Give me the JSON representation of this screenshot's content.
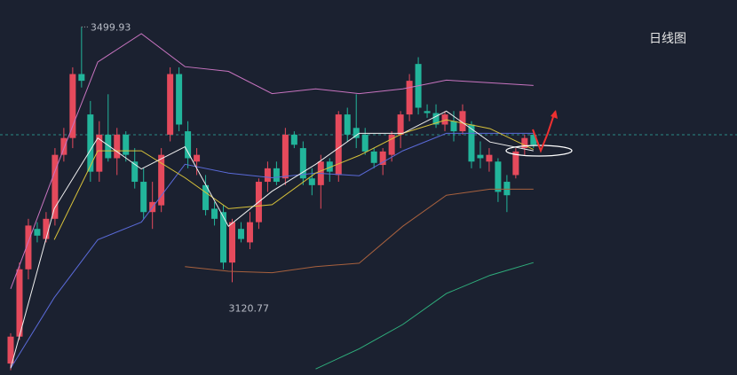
{
  "chart_data": {
    "type": "candlestick",
    "title": "日线图",
    "ylim": [
      2983,
      3540
    ],
    "up_color": "#e54a5c",
    "down_color": "#22b59b",
    "ohlc": [
      [
        3000,
        3045,
        2990,
        3040
      ],
      [
        3040,
        3150,
        3035,
        3140
      ],
      [
        3140,
        3215,
        3125,
        3205
      ],
      [
        3200,
        3210,
        3180,
        3190
      ],
      [
        3185,
        3225,
        3180,
        3215
      ],
      [
        3215,
        3320,
        3205,
        3310
      ],
      [
        3310,
        3350,
        3300,
        3335
      ],
      [
        3335,
        3440,
        3320,
        3430
      ],
      [
        3430,
        3499.93,
        3410,
        3420
      ],
      [
        3370,
        3390,
        3270,
        3285
      ],
      [
        3285,
        3360,
        3270,
        3340
      ],
      [
        3340,
        3400,
        3300,
        3305
      ],
      [
        3305,
        3350,
        3280,
        3340
      ],
      [
        3340,
        3345,
        3300,
        3310
      ],
      [
        3300,
        3320,
        3260,
        3270
      ],
      [
        3270,
        3290,
        3215,
        3225
      ],
      [
        3225,
        3270,
        3200,
        3240
      ],
      [
        3235,
        3320,
        3225,
        3310
      ],
      [
        3340,
        3440,
        3330,
        3430
      ],
      [
        3430,
        3440,
        3345,
        3355
      ],
      [
        3345,
        3360,
        3290,
        3305
      ],
      [
        3300,
        3320,
        3280,
        3310
      ],
      [
        3265,
        3280,
        3220,
        3228
      ],
      [
        3230,
        3240,
        3205,
        3215
      ],
      [
        3225,
        3235,
        3140,
        3150
      ],
      [
        3150,
        3215,
        3120.77,
        3210
      ],
      [
        3200,
        3210,
        3180,
        3185
      ],
      [
        3180,
        3225,
        3170,
        3210
      ],
      [
        3210,
        3275,
        3200,
        3270
      ],
      [
        3270,
        3300,
        3255,
        3290
      ],
      [
        3290,
        3300,
        3265,
        3270
      ],
      [
        3275,
        3350,
        3265,
        3340
      ],
      [
        3340,
        3345,
        3320,
        3325
      ],
      [
        3320,
        3330,
        3265,
        3275
      ],
      [
        3275,
        3290,
        3250,
        3265
      ],
      [
        3265,
        3310,
        3230,
        3300
      ],
      [
        3300,
        3305,
        3270,
        3285
      ],
      [
        3280,
        3375,
        3270,
        3370
      ],
      [
        3370,
        3380,
        3330,
        3340
      ],
      [
        3350,
        3400,
        3320,
        3335
      ],
      [
        3340,
        3350,
        3310,
        3315
      ],
      [
        3315,
        3320,
        3290,
        3298
      ],
      [
        3295,
        3320,
        3280,
        3315
      ],
      [
        3310,
        3345,
        3300,
        3340
      ],
      [
        3340,
        3375,
        3320,
        3370
      ],
      [
        3370,
        3430,
        3360,
        3420
      ],
      [
        3445,
        3455,
        3370,
        3380
      ],
      [
        3375,
        3385,
        3365,
        3372
      ],
      [
        3372,
        3385,
        3350,
        3355
      ],
      [
        3355,
        3375,
        3345,
        3370
      ],
      [
        3360,
        3375,
        3330,
        3345
      ],
      [
        3345,
        3385,
        3340,
        3375
      ],
      [
        3355,
        3360,
        3290,
        3300
      ],
      [
        3310,
        3330,
        3290,
        3305
      ],
      [
        3300,
        3320,
        3285,
        3310
      ],
      [
        3300,
        3305,
        3240,
        3255
      ],
      [
        3270,
        3280,
        3225,
        3250
      ],
      [
        3280,
        3320,
        3275,
        3315
      ],
      [
        3320,
        3340,
        3310,
        3335
      ],
      [
        3340,
        3345,
        3320,
        3325
      ]
    ],
    "series": [
      {
        "color": "#c874c0",
        "values": [
          3111,
          3283,
          3448,
          3490,
          3441,
          3434,
          3401,
          3408,
          3401,
          3408,
          3421,
          3417,
          3413
        ]
      },
      {
        "color": "#a8613e",
        "values": [
          null,
          null,
          null,
          null,
          3144,
          3137,
          3135,
          3144,
          3149,
          3204,
          3250,
          3259,
          3259
        ]
      },
      {
        "color": "#2fae7c",
        "values": [
          null,
          null,
          null,
          null,
          null,
          null,
          null,
          2992,
          3022,
          3058,
          3104,
          3131,
          3150
        ]
      },
      {
        "color": "#5a6ad8",
        "values": [
          2993,
          3098,
          3184,
          3210,
          3296,
          3283,
          3276,
          3283,
          3279,
          3316,
          3342,
          3342,
          3342
        ]
      },
      {
        "color": "#d8c23a",
        "values": [
          null,
          3184,
          3316,
          3316,
          3276,
          3230,
          3236,
          3283,
          3309,
          3342,
          3362,
          3349,
          3318
        ]
      },
      {
        "color": "#f0f0f0",
        "values": [
          2993,
          3230,
          3335,
          3289,
          3322,
          3204,
          3256,
          3296,
          3342,
          3342,
          3375,
          3329,
          3316
        ]
      }
    ],
    "annotations": [
      {
        "text": "3499.93"
      },
      {
        "text": "3120.77"
      }
    ]
  }
}
